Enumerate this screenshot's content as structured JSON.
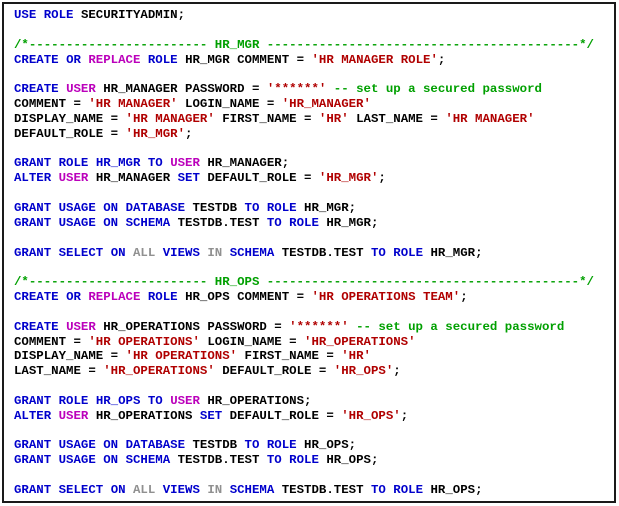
{
  "page": {
    "background": "#FFFFFF",
    "frame_border_color": "#1A1A1A"
  },
  "code": {
    "language": "sql",
    "colors": {
      "kw": "#0000CC",
      "obj": "#BB00BB",
      "str": "#B00000",
      "com": "#00A000",
      "sec": "#909090",
      "pl": "#000000"
    },
    "lines": [
      [
        {
          "t": "USE ",
          "c": "kw"
        },
        {
          "t": "ROLE ",
          "c": "kw"
        },
        {
          "t": "SECURITYADMIN;",
          "c": "pl"
        }
      ],
      [],
      [
        {
          "t": "/*------------------------ HR_MGR ------------------------------------------*/",
          "c": "com"
        }
      ],
      [
        {
          "t": "CREATE ",
          "c": "kw"
        },
        {
          "t": "OR ",
          "c": "kw"
        },
        {
          "t": "REPLACE ",
          "c": "obj"
        },
        {
          "t": "ROLE ",
          "c": "kw"
        },
        {
          "t": "HR_MGR COMMENT = ",
          "c": "pl"
        },
        {
          "t": "'HR MANAGER ROLE'",
          "c": "str"
        },
        {
          "t": ";",
          "c": "pl"
        }
      ],
      [],
      [
        {
          "t": "CREATE ",
          "c": "kw"
        },
        {
          "t": "USER ",
          "c": "obj"
        },
        {
          "t": "HR_MANAGER PASSWORD = ",
          "c": "pl"
        },
        {
          "t": "'******' ",
          "c": "str"
        },
        {
          "t": "-- set up a secured password",
          "c": "com"
        }
      ],
      [
        {
          "t": "COMMENT = ",
          "c": "pl"
        },
        {
          "t": "'HR MANAGER'",
          "c": "str"
        },
        {
          "t": " LOGIN_NAME = ",
          "c": "pl"
        },
        {
          "t": "'HR_MANAGER'",
          "c": "str"
        }
      ],
      [
        {
          "t": "DISPLAY_NAME = ",
          "c": "pl"
        },
        {
          "t": "'HR MANAGER'",
          "c": "str"
        },
        {
          "t": " FIRST_NAME = ",
          "c": "pl"
        },
        {
          "t": "'HR'",
          "c": "str"
        },
        {
          "t": " LAST_NAME = ",
          "c": "pl"
        },
        {
          "t": "'HR MANAGER'",
          "c": "str"
        }
      ],
      [
        {
          "t": "DEFAULT_ROLE = ",
          "c": "pl"
        },
        {
          "t": "'HR_MGR'",
          "c": "str"
        },
        {
          "t": ";",
          "c": "pl"
        }
      ],
      [],
      [
        {
          "t": "GRANT ",
          "c": "kw"
        },
        {
          "t": "ROLE ",
          "c": "kw"
        },
        {
          "t": "HR_MGR ",
          "c": "kw"
        },
        {
          "t": "TO ",
          "c": "kw"
        },
        {
          "t": "USER ",
          "c": "obj"
        },
        {
          "t": "HR_MANAGER;",
          "c": "pl"
        }
      ],
      [
        {
          "t": "ALTER ",
          "c": "kw"
        },
        {
          "t": "USER ",
          "c": "obj"
        },
        {
          "t": "HR_MANAGER ",
          "c": "pl"
        },
        {
          "t": "SET ",
          "c": "kw"
        },
        {
          "t": "DEFAULT_ROLE = ",
          "c": "pl"
        },
        {
          "t": "'HR_MGR'",
          "c": "str"
        },
        {
          "t": ";",
          "c": "pl"
        }
      ],
      [],
      [
        {
          "t": "GRANT ",
          "c": "kw"
        },
        {
          "t": "USAGE ",
          "c": "kw"
        },
        {
          "t": "ON ",
          "c": "kw"
        },
        {
          "t": "DATABASE ",
          "c": "kw"
        },
        {
          "t": "TESTDB ",
          "c": "pl"
        },
        {
          "t": "TO ",
          "c": "kw"
        },
        {
          "t": "ROLE ",
          "c": "kw"
        },
        {
          "t": "HR_MGR;",
          "c": "pl"
        }
      ],
      [
        {
          "t": "GRANT ",
          "c": "kw"
        },
        {
          "t": "USAGE ",
          "c": "kw"
        },
        {
          "t": "ON ",
          "c": "kw"
        },
        {
          "t": "SCHEMA ",
          "c": "kw"
        },
        {
          "t": "TESTDB.TEST ",
          "c": "pl"
        },
        {
          "t": "TO ",
          "c": "kw"
        },
        {
          "t": "ROLE ",
          "c": "kw"
        },
        {
          "t": "HR_MGR;",
          "c": "pl"
        }
      ],
      [],
      [
        {
          "t": "GRANT ",
          "c": "kw"
        },
        {
          "t": "SELECT ",
          "c": "kw"
        },
        {
          "t": "ON ",
          "c": "kw"
        },
        {
          "t": "ALL ",
          "c": "sec"
        },
        {
          "t": "VIEWS ",
          "c": "kw"
        },
        {
          "t": "IN ",
          "c": "sec"
        },
        {
          "t": "SCHEMA ",
          "c": "kw"
        },
        {
          "t": "TESTDB.TEST ",
          "c": "pl"
        },
        {
          "t": "TO ",
          "c": "kw"
        },
        {
          "t": "ROLE ",
          "c": "kw"
        },
        {
          "t": "HR_MGR;",
          "c": "pl"
        }
      ],
      [],
      [
        {
          "t": "/*------------------------ HR_OPS ------------------------------------------*/",
          "c": "com"
        }
      ],
      [
        {
          "t": "CREATE ",
          "c": "kw"
        },
        {
          "t": "OR ",
          "c": "kw"
        },
        {
          "t": "REPLACE ",
          "c": "obj"
        },
        {
          "t": "ROLE ",
          "c": "kw"
        },
        {
          "t": "HR_OPS COMMENT = ",
          "c": "pl"
        },
        {
          "t": "'HR OPERATIONS TEAM'",
          "c": "str"
        },
        {
          "t": ";",
          "c": "pl"
        }
      ],
      [],
      [
        {
          "t": "CREATE ",
          "c": "kw"
        },
        {
          "t": "USER ",
          "c": "obj"
        },
        {
          "t": "HR_OPERATIONS PASSWORD = ",
          "c": "pl"
        },
        {
          "t": "'******' ",
          "c": "str"
        },
        {
          "t": "-- set up a secured password",
          "c": "com"
        }
      ],
      [
        {
          "t": "COMMENT = ",
          "c": "pl"
        },
        {
          "t": "'HR OPERATIONS'",
          "c": "str"
        },
        {
          "t": " LOGIN_NAME = ",
          "c": "pl"
        },
        {
          "t": "'HR_OPERATIONS'",
          "c": "str"
        }
      ],
      [
        {
          "t": "DISPLAY_NAME = ",
          "c": "pl"
        },
        {
          "t": "'HR OPERATIONS'",
          "c": "str"
        },
        {
          "t": " FIRST_NAME = ",
          "c": "pl"
        },
        {
          "t": "'HR'",
          "c": "str"
        }
      ],
      [
        {
          "t": "LAST_NAME = ",
          "c": "pl"
        },
        {
          "t": "'HR_OPERATIONS'",
          "c": "str"
        },
        {
          "t": " DEFAULT_ROLE = ",
          "c": "pl"
        },
        {
          "t": "'HR_OPS'",
          "c": "str"
        },
        {
          "t": ";",
          "c": "pl"
        }
      ],
      [],
      [
        {
          "t": "GRANT ",
          "c": "kw"
        },
        {
          "t": "ROLE ",
          "c": "kw"
        },
        {
          "t": "HR_OPS ",
          "c": "kw"
        },
        {
          "t": "TO ",
          "c": "kw"
        },
        {
          "t": "USER ",
          "c": "obj"
        },
        {
          "t": "HR_OPERATIONS;",
          "c": "pl"
        }
      ],
      [
        {
          "t": "ALTER ",
          "c": "kw"
        },
        {
          "t": "USER ",
          "c": "obj"
        },
        {
          "t": "HR_OPERATIONS ",
          "c": "pl"
        },
        {
          "t": "SET ",
          "c": "kw"
        },
        {
          "t": "DEFAULT_ROLE = ",
          "c": "pl"
        },
        {
          "t": "'HR_OPS'",
          "c": "str"
        },
        {
          "t": ";",
          "c": "pl"
        }
      ],
      [],
      [
        {
          "t": "GRANT ",
          "c": "kw"
        },
        {
          "t": "USAGE ",
          "c": "kw"
        },
        {
          "t": "ON ",
          "c": "kw"
        },
        {
          "t": "DATABASE ",
          "c": "kw"
        },
        {
          "t": "TESTDB ",
          "c": "pl"
        },
        {
          "t": "TO ",
          "c": "kw"
        },
        {
          "t": "ROLE ",
          "c": "kw"
        },
        {
          "t": "HR_OPS;",
          "c": "pl"
        }
      ],
      [
        {
          "t": "GRANT ",
          "c": "kw"
        },
        {
          "t": "USAGE ",
          "c": "kw"
        },
        {
          "t": "ON ",
          "c": "kw"
        },
        {
          "t": "SCHEMA ",
          "c": "kw"
        },
        {
          "t": "TESTDB.TEST ",
          "c": "pl"
        },
        {
          "t": "TO ",
          "c": "kw"
        },
        {
          "t": "ROLE ",
          "c": "kw"
        },
        {
          "t": "HR_OPS;",
          "c": "pl"
        }
      ],
      [],
      [
        {
          "t": "GRANT ",
          "c": "kw"
        },
        {
          "t": "SELECT ",
          "c": "kw"
        },
        {
          "t": "ON ",
          "c": "kw"
        },
        {
          "t": "ALL ",
          "c": "sec"
        },
        {
          "t": "VIEWS ",
          "c": "kw"
        },
        {
          "t": "IN ",
          "c": "sec"
        },
        {
          "t": "SCHEMA ",
          "c": "kw"
        },
        {
          "t": "TESTDB.TEST ",
          "c": "pl"
        },
        {
          "t": "TO ",
          "c": "kw"
        },
        {
          "t": "ROLE ",
          "c": "kw"
        },
        {
          "t": "HR_OPS;",
          "c": "pl"
        }
      ]
    ]
  }
}
